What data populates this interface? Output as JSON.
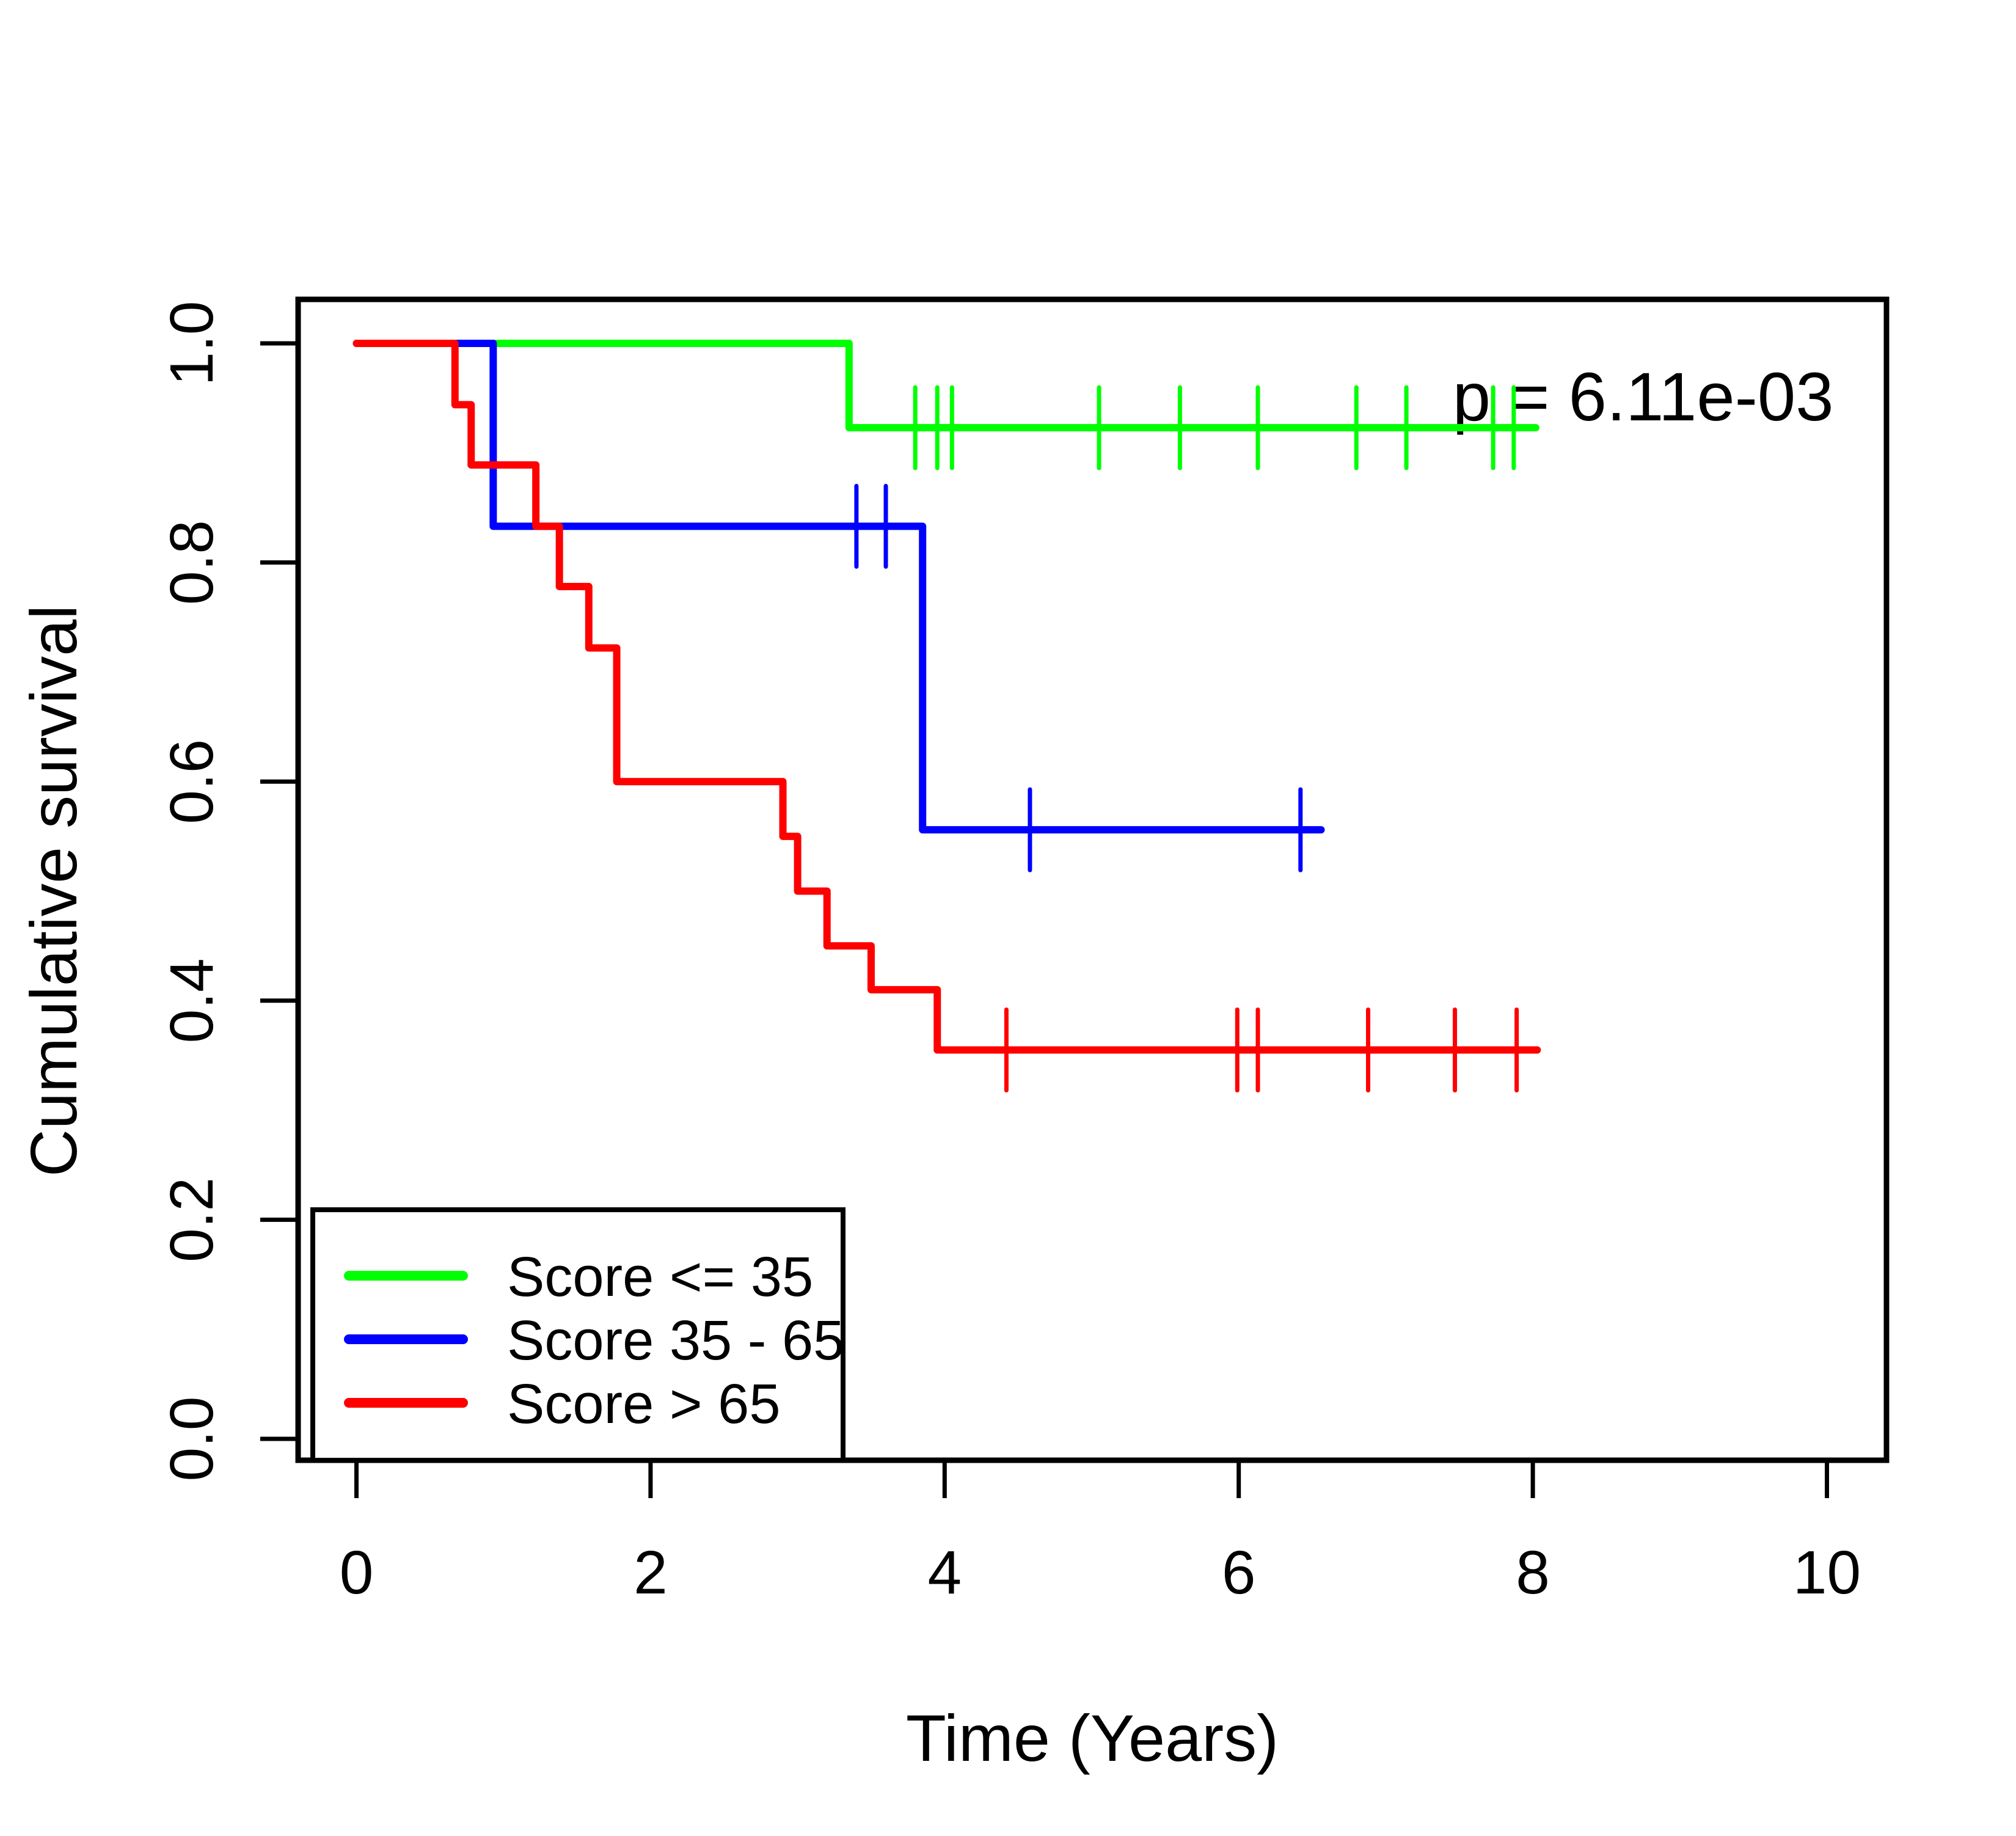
{
  "figure": {
    "background": "#FFFFFF"
  },
  "chart_data": {
    "type": "line",
    "chart_kind": "kaplan_meier_step_survival",
    "title": "",
    "xlabel": "Time (Years)",
    "ylabel": "Cumulative survival",
    "x_tick_labels": [
      "0",
      "2",
      "4",
      "6",
      "8",
      "10"
    ],
    "x_tick_values": [
      0,
      2,
      4,
      6,
      8,
      10
    ],
    "y_tick_labels": [
      "0.0",
      "0.2",
      "0.4",
      "0.6",
      "0.8",
      "1.0"
    ],
    "y_tick_values": [
      0,
      0.2,
      0.4,
      0.6,
      0.8,
      1.0
    ],
    "xlim": [
      -0.4,
      10.4
    ],
    "ylim": [
      -0.04,
      1.04
    ],
    "grid": false,
    "legend_position": "bottom-left",
    "annotation": {
      "text": "p = 6.11e-03",
      "x_year": 8.75,
      "y_survival": 0.952
    },
    "axis_color": "#000000",
    "series": [
      {
        "key": "score-le-35",
        "label": "Score <= 35",
        "color": "#00FF00",
        "start": [
          0,
          1.0
        ],
        "events": [
          [
            3.35,
            0.923
          ]
        ],
        "end_time": 8.02,
        "censor_marks": [
          [
            3.8,
            0.923
          ],
          [
            3.95,
            0.923
          ],
          [
            4.05,
            0.923
          ],
          [
            5.05,
            0.923
          ],
          [
            5.6,
            0.923
          ],
          [
            6.13,
            0.923
          ],
          [
            6.8,
            0.923
          ],
          [
            7.14,
            0.923
          ],
          [
            7.73,
            0.923
          ],
          [
            7.87,
            0.923
          ]
        ]
      },
      {
        "key": "score-35-65",
        "label": "Score 35 - 65",
        "color": "#0000FF",
        "start": [
          0,
          1.0
        ],
        "events": [
          [
            0.93,
            0.833
          ],
          [
            3.85,
            0.556
          ]
        ],
        "end_time": 6.56,
        "censor_marks": [
          [
            3.4,
            0.833
          ],
          [
            3.6,
            0.833
          ],
          [
            4.58,
            0.556
          ],
          [
            6.42,
            0.556
          ]
        ]
      },
      {
        "key": "score-gt-65",
        "label": "Score > 65",
        "color": "#FF0000",
        "start": [
          0,
          1.0
        ],
        "events": [
          [
            0.67,
            0.944
          ],
          [
            0.78,
            0.889
          ],
          [
            1.22,
            0.833
          ],
          [
            1.38,
            0.778
          ],
          [
            1.58,
            0.722
          ],
          [
            1.77,
            0.6
          ],
          [
            2.9,
            0.55
          ],
          [
            3.0,
            0.5
          ],
          [
            3.2,
            0.45
          ],
          [
            3.5,
            0.41
          ],
          [
            3.95,
            0.355
          ]
        ],
        "end_time": 8.03,
        "censor_marks": [
          [
            4.42,
            0.355
          ],
          [
            5.99,
            0.355
          ],
          [
            6.13,
            0.355
          ],
          [
            6.88,
            0.355
          ],
          [
            7.47,
            0.355
          ],
          [
            7.89,
            0.355
          ]
        ]
      }
    ]
  }
}
